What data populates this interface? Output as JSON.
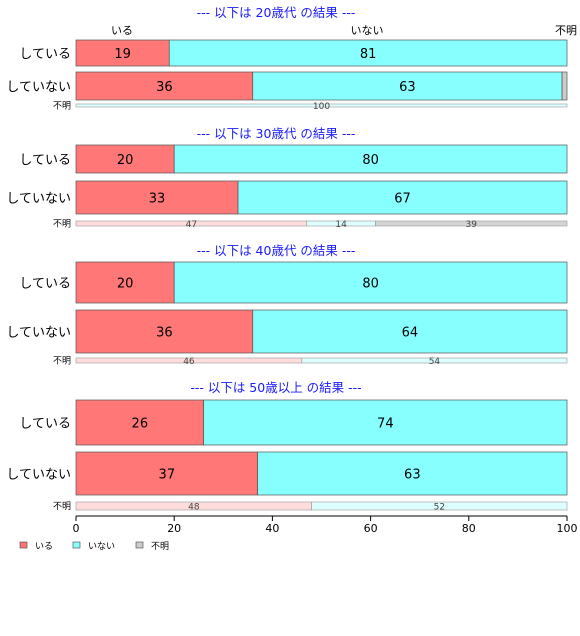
{
  "chart_data": {
    "type": "bar",
    "orientation": "horizontal-stacked-100",
    "xlim": [
      0,
      100
    ],
    "x_ticks": [
      "0",
      "20",
      "40",
      "60",
      "80",
      "100"
    ],
    "column_headers": [
      "いる",
      "いない",
      "不明"
    ],
    "legend": {
      "placement": "bottom-left",
      "entries": [
        {
          "label": "いる",
          "color": "#ff7777"
        },
        {
          "label": "いない",
          "color": "#88ffff"
        },
        {
          "label": "不明",
          "color": "#cccccc"
        }
      ]
    },
    "groups": [
      {
        "title": "--- 以下は 20歳代 の結果 ---",
        "rows": [
          {
            "label": "している",
            "values": [
              19,
              81,
              0
            ]
          },
          {
            "label": "していない",
            "values": [
              36,
              63,
              1
            ]
          },
          {
            "label": "不明",
            "values": [
              0,
              100,
              0
            ],
            "small": true
          }
        ]
      },
      {
        "title": "--- 以下は 30歳代 の結果 ---",
        "rows": [
          {
            "label": "している",
            "values": [
              20,
              80,
              0
            ]
          },
          {
            "label": "していない",
            "values": [
              33,
              67,
              0
            ]
          },
          {
            "label": "不明",
            "values": [
              47,
              14,
              39
            ],
            "small": true
          }
        ]
      },
      {
        "title": "--- 以下は 40歳代 の結果 ---",
        "rows": [
          {
            "label": "している",
            "values": [
              20,
              80,
              0
            ]
          },
          {
            "label": "していない",
            "values": [
              36,
              64,
              0
            ]
          },
          {
            "label": "不明",
            "values": [
              46,
              54,
              0
            ],
            "small": true
          }
        ]
      },
      {
        "title": "--- 以下は 50歳以上 の結果 ---",
        "rows": [
          {
            "label": "している",
            "values": [
              26,
              74,
              0
            ]
          },
          {
            "label": "していない",
            "values": [
              37,
              63,
              0
            ]
          },
          {
            "label": "不明",
            "values": [
              48,
              52,
              0
            ],
            "small": true
          }
        ]
      }
    ]
  },
  "colors": {
    "big": [
      "#ff7777",
      "#88ffff",
      "#cccccc"
    ],
    "small": [
      "#ffdddd",
      "#ddffff",
      "#d4d4d4"
    ],
    "title": "#1a1aff"
  }
}
